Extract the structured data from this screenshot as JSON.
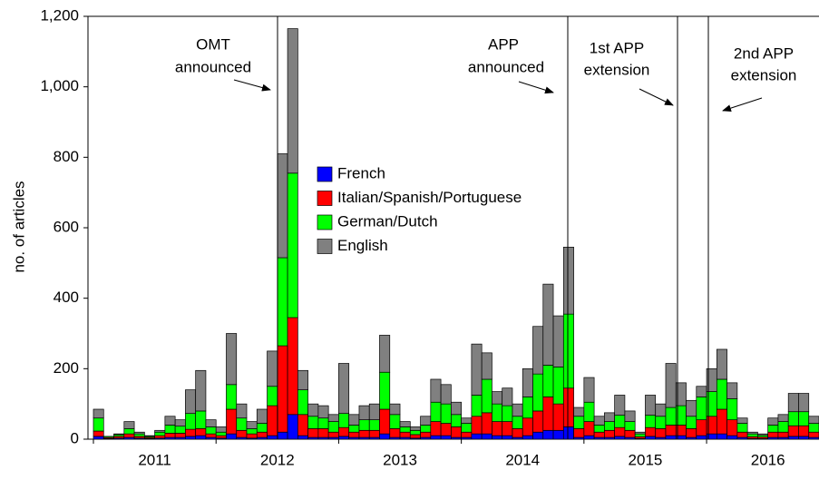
{
  "chart_data": {
    "type": "stacked-bar",
    "y_label": "no. of articles",
    "ylim": [
      0,
      1200
    ],
    "yticks": [
      0,
      200,
      400,
      600,
      800,
      {
        "value": 1000,
        "label": "1,000"
      },
      {
        "value": 1200,
        "label": "1,200"
      }
    ],
    "categories": [
      null,
      null,
      null,
      null,
      null,
      null,
      "2011",
      null,
      null,
      null,
      null,
      null,
      null,
      null,
      null,
      null,
      null,
      null,
      "2012",
      null,
      null,
      null,
      null,
      null,
      null,
      null,
      null,
      null,
      null,
      null,
      "2013",
      null,
      null,
      null,
      null,
      null,
      null,
      null,
      null,
      null,
      null,
      null,
      "2014",
      null,
      null,
      null,
      null,
      null,
      null,
      null,
      null,
      null,
      null,
      null,
      "2015",
      null,
      null,
      null,
      null,
      null,
      null,
      null,
      null,
      null,
      null,
      null,
      "2016",
      null,
      null,
      null,
      null
    ],
    "series": [
      {
        "name": "French",
        "color": "#0000ff",
        "values": [
          8,
          2,
          3,
          5,
          3,
          2,
          3,
          5,
          5,
          8,
          10,
          5,
          3,
          15,
          5,
          3,
          5,
          10,
          20,
          70,
          10,
          5,
          5,
          5,
          8,
          5,
          5,
          5,
          15,
          5,
          5,
          3,
          5,
          10,
          10,
          5,
          5,
          15,
          15,
          10,
          10,
          5,
          10,
          20,
          25,
          25,
          35,
          5,
          10,
          5,
          5,
          8,
          5,
          2,
          8,
          5,
          10,
          10,
          5,
          10,
          15,
          15,
          10,
          5,
          2,
          2,
          5,
          5,
          8,
          8,
          5
        ]
      },
      {
        "name": "Italian/Spanish/Portuguese",
        "color": "#ff0000",
        "values": [
          15,
          3,
          5,
          10,
          5,
          3,
          7,
          12,
          12,
          20,
          20,
          10,
          7,
          70,
          20,
          12,
          15,
          85,
          245,
          275,
          60,
          25,
          25,
          15,
          25,
          15,
          20,
          20,
          70,
          25,
          15,
          10,
          15,
          40,
          35,
          30,
          15,
          50,
          60,
          40,
          40,
          25,
          50,
          60,
          95,
          75,
          110,
          25,
          40,
          15,
          20,
          25,
          20,
          5,
          25,
          25,
          30,
          30,
          25,
          45,
          50,
          70,
          45,
          15,
          5,
          4,
          15,
          15,
          30,
          30,
          15
        ]
      },
      {
        "name": "German/Dutch",
        "color": "#00ff00",
        "values": [
          37,
          3,
          5,
          15,
          7,
          3,
          10,
          23,
          20,
          45,
          50,
          20,
          10,
          70,
          35,
          15,
          25,
          55,
          250,
          410,
          70,
          35,
          30,
          30,
          40,
          20,
          30,
          30,
          105,
          40,
          15,
          12,
          20,
          55,
          55,
          35,
          25,
          60,
          95,
          50,
          45,
          35,
          60,
          105,
          90,
          105,
          210,
          35,
          55,
          20,
          25,
          35,
          25,
          8,
          35,
          35,
          50,
          55,
          35,
          65,
          70,
          85,
          60,
          25,
          8,
          5,
          20,
          30,
          40,
          40,
          25
        ]
      },
      {
        "name": "English",
        "color": "#808080",
        "values": [
          25,
          0,
          2,
          20,
          5,
          2,
          5,
          25,
          18,
          67,
          115,
          20,
          15,
          145,
          40,
          20,
          40,
          100,
          295,
          410,
          55,
          35,
          35,
          20,
          142,
          30,
          40,
          45,
          105,
          30,
          15,
          10,
          25,
          65,
          55,
          35,
          15,
          145,
          75,
          35,
          50,
          35,
          80,
          135,
          230,
          145,
          190,
          25,
          70,
          25,
          25,
          57,
          30,
          5,
          57,
          35,
          125,
          65,
          45,
          30,
          65,
          85,
          45,
          15,
          5,
          4,
          20,
          20,
          52,
          52,
          20
        ]
      }
    ],
    "annotations": [
      {
        "lines": [
          "OMT",
          "announced"
        ]
      },
      {
        "lines": [
          "APP",
          "announced"
        ]
      },
      {
        "lines": [
          "1st APP",
          "extension"
        ]
      },
      {
        "lines": [
          "2nd APP",
          "extension"
        ]
      }
    ]
  }
}
